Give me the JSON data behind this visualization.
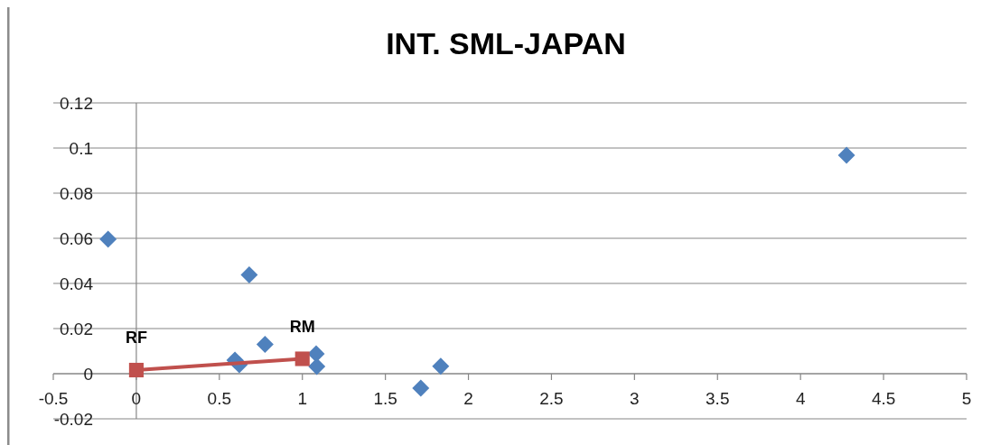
{
  "chart_data": {
    "type": "scatter",
    "title": "INT. SML-JAPAN",
    "xlim": [
      -0.5,
      5
    ],
    "xticks": [
      -0.5,
      0,
      0.5,
      1,
      1.5,
      2,
      2.5,
      3,
      3.5,
      4,
      4.5,
      5
    ],
    "ylim": [
      -0.02,
      0.12
    ],
    "yticks": [
      -0.02,
      0,
      0.02,
      0.04,
      0.06,
      0.08,
      0.1,
      0.12
    ],
    "grid": "y",
    "series": [
      {
        "color": "#4f81bd",
        "marker": "diamond",
        "x": [
          -0.17,
          0.68,
          0.775,
          0.594,
          0.62,
          1.083,
          1.087,
          1.713,
          1.833,
          4.277
        ],
        "values": [
          0.0596,
          0.0438,
          0.013,
          0.006,
          0.004,
          0.0088,
          0.0032,
          -0.0064,
          0.0033,
          0.0968
        ]
      },
      {
        "type": "line",
        "color": "#c0504d",
        "marker": "square",
        "x": [
          0,
          1
        ],
        "values": [
          0.0016,
          0.0066
        ]
      }
    ],
    "annotations": [
      {
        "text": "RF",
        "x": 0,
        "y": 0.0016
      },
      {
        "text": "RM",
        "x": 1,
        "y": 0.0066
      }
    ]
  }
}
